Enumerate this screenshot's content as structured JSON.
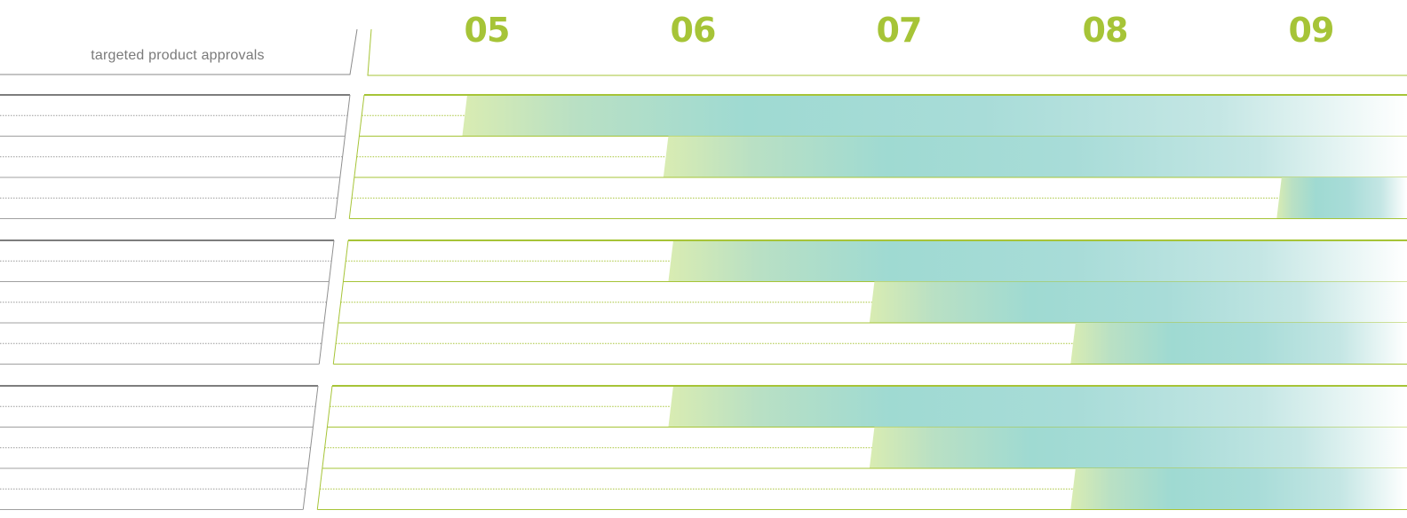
{
  "chart_data": {
    "type": "bar",
    "subtitle": "targeted product approvals",
    "x_tick_labels": [
      "05",
      "06",
      "07",
      "08",
      "09"
    ],
    "x_range": [
      "05",
      "09"
    ],
    "groups": [
      {
        "rows": [
          {
            "start": "05",
            "label": ""
          },
          {
            "start": "06",
            "label": ""
          },
          {
            "start": "09",
            "label": ""
          }
        ]
      },
      {
        "rows": [
          {
            "start": "06",
            "label": ""
          },
          {
            "start": "07",
            "label": ""
          },
          {
            "start": "08",
            "label": ""
          }
        ]
      },
      {
        "rows": [
          {
            "start": "06",
            "label": ""
          },
          {
            "start": "07",
            "label": ""
          },
          {
            "start": "08",
            "label": ""
          }
        ]
      }
    ],
    "grid": true,
    "legend": "none"
  },
  "colors": {
    "accent": "#a6c437",
    "bar_teal": "#a8ddd8",
    "bar_green": "#cfe6b4",
    "rule_gray": "#8a8a8a"
  }
}
